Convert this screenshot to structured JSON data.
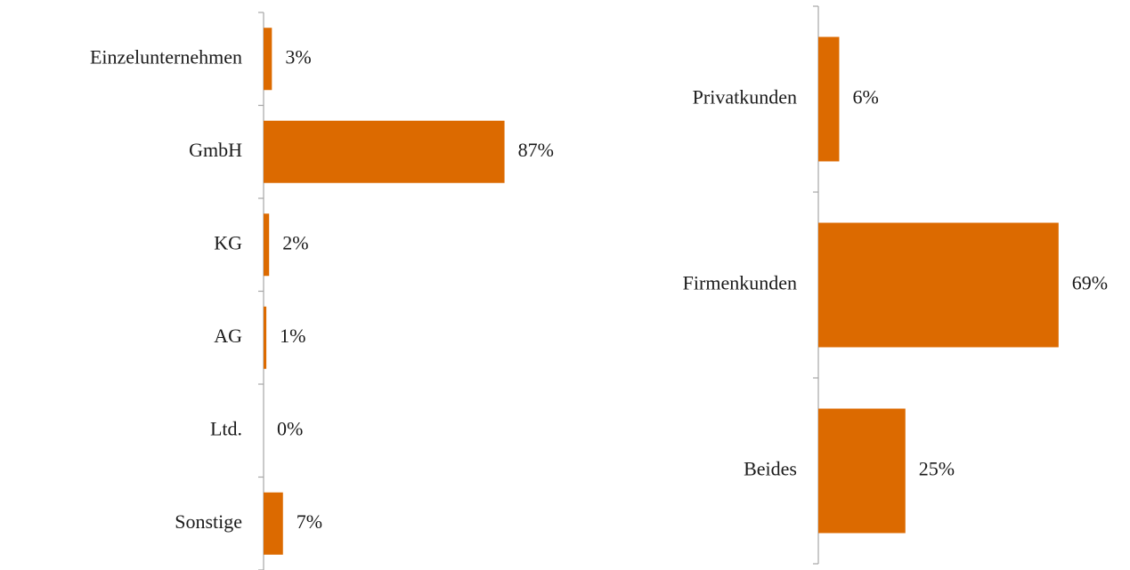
{
  "chart_data": [
    {
      "type": "bar",
      "orientation": "horizontal",
      "categories": [
        "Einzelunternehmen",
        "GmbH",
        "KG",
        "AG",
        "Ltd.",
        "Sonstige"
      ],
      "values": [
        3,
        87,
        2,
        1,
        0,
        7
      ],
      "value_labels": [
        "3%",
        "87%",
        "2%",
        "1%",
        "0%",
        "7%"
      ],
      "color": "#dc6a00",
      "xlim": [
        0,
        100
      ]
    },
    {
      "type": "bar",
      "orientation": "horizontal",
      "categories": [
        "Privatkunden",
        "Firmenkunden",
        "Beides"
      ],
      "values": [
        6,
        69,
        25
      ],
      "value_labels": [
        "6%",
        "69%",
        "25%"
      ],
      "color": "#dc6a00",
      "xlim": [
        0,
        100
      ]
    }
  ]
}
